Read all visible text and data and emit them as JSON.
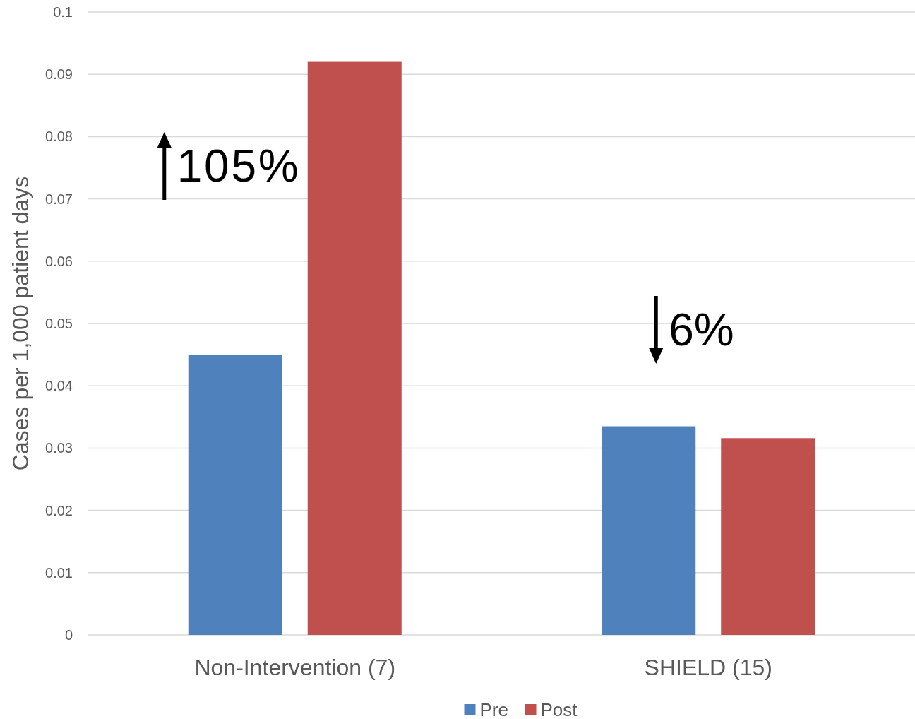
{
  "chart_data": {
    "type": "bar",
    "ylabel": "Cases per 1,000 patient days",
    "categories": [
      "Non-Intervention (7)",
      "SHIELD (15)"
    ],
    "series": [
      {
        "name": "Pre",
        "color": "#4f81bd",
        "values": [
          0.045,
          0.0335
        ]
      },
      {
        "name": "Post",
        "color": "#c0504d",
        "values": [
          0.092,
          0.0316
        ]
      }
    ],
    "ylim": [
      0,
      0.1
    ],
    "yticks": [
      0,
      0.01,
      0.02,
      0.03,
      0.04,
      0.05,
      0.06,
      0.07,
      0.08,
      0.09,
      0.1
    ],
    "grid": "y",
    "legend": "bottom",
    "annotations": [
      "105%",
      "6%"
    ]
  }
}
